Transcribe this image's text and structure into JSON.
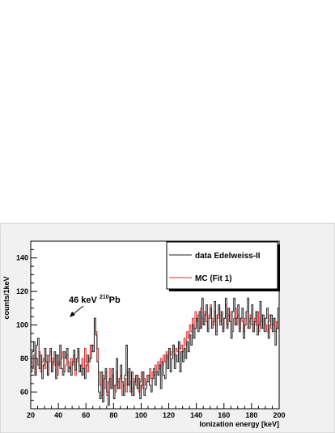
{
  "chart_data": {
    "type": "line",
    "step": true,
    "title": "",
    "xlabel": "Ionization energy [keV]",
    "ylabel": "counts/1keV",
    "xlim": [
      20,
      200
    ],
    "ylim": [
      50,
      150
    ],
    "x_ticks": [
      20,
      40,
      60,
      80,
      100,
      120,
      140,
      160,
      180,
      200
    ],
    "y_ticks": [
      60,
      80,
      100,
      120,
      140
    ],
    "legend": {
      "placement": "top-right",
      "entries": [
        {
          "label": "data Edelweiss-II",
          "color": "#222222"
        },
        {
          "label": "MC (Fit 1)",
          "color": "#e8282b"
        }
      ]
    },
    "annotation": {
      "prefix": "46 keV ",
      "sup": "210",
      "suffix": "Pb",
      "x": 46,
      "y": 104
    },
    "x_start": 20,
    "bin_width": 1,
    "series": [
      {
        "name": "data Edelweiss-II",
        "color": "#222222",
        "values": [
          72,
          84,
          90,
          70,
          88,
          92,
          74,
          82,
          68,
          76,
          86,
          78,
          70,
          82,
          86,
          72,
          78,
          84,
          68,
          82,
          76,
          88,
          74,
          70,
          84,
          80,
          86,
          72,
          75,
          70,
          78,
          85,
          73,
          80,
          86,
          72,
          76,
          70,
          74,
          68,
          76,
          82,
          78,
          80,
          88,
          84,
          104,
          94,
          78,
          60,
          56,
          72,
          54,
          68,
          74,
          60,
          52,
          68,
          62,
          74,
          56,
          64,
          80,
          62,
          68,
          76,
          66,
          58,
          70,
          88,
          64,
          74,
          60,
          72,
          58,
          66,
          70,
          62,
          68,
          56,
          64,
          72,
          58,
          62,
          66,
          70,
          64,
          60,
          68,
          74,
          64,
          72,
          70,
          76,
          62,
          78,
          70,
          68,
          82,
          74,
          86,
          72,
          80,
          88,
          74,
          82,
          78,
          90,
          72,
          84,
          78,
          86,
          80,
          90,
          84,
          94,
          88,
          100,
          92,
          98,
          104,
          96,
          108,
          98,
          116,
          100,
          106,
          112,
          96,
          104,
          110,
          98,
          102,
          114,
          94,
          106,
          112,
          100,
          108,
          96,
          104,
          116,
          98,
          110,
          102,
          92,
          108,
          116,
          100,
          104,
          112,
          96,
          104,
          110,
          92,
          100,
          108,
          116,
          98,
          104,
          112,
          96,
          102,
          108,
          94,
          100,
          114,
          98,
          106,
          96,
          104,
          110,
          92,
          100,
          106,
          96,
          104,
          88,
          98,
          110,
          94,
          102,
          92,
          100,
          86,
          98,
          104,
          90,
          96,
          88,
          100,
          92
        ]
      },
      {
        "name": "MC (Fit 1)",
        "color": "#e8282b",
        "values": [
          78,
          74,
          82,
          70,
          80,
          76,
          84,
          72,
          78,
          80,
          74,
          82,
          70,
          78,
          84,
          72,
          80,
          76,
          82,
          70,
          78,
          74,
          80,
          84,
          72,
          76,
          82,
          78,
          74,
          80,
          76,
          82,
          70,
          78,
          84,
          76,
          72,
          80,
          74,
          86,
          78,
          72,
          80,
          88,
          84,
          88,
          104,
          96,
          86,
          72,
          64,
          58,
          70,
          62,
          72,
          58,
          66,
          74,
          62,
          70,
          64,
          60,
          72,
          66,
          62,
          70,
          58,
          64,
          68,
          60,
          72,
          64,
          66,
          58,
          62,
          68,
          64,
          70,
          60,
          66,
          72,
          62,
          68,
          64,
          70,
          66,
          74,
          68,
          72,
          70,
          76,
          72,
          78,
          74,
          80,
          76,
          82,
          78,
          84,
          80,
          86,
          82,
          84,
          88,
          82,
          86,
          84,
          90,
          86,
          88,
          84,
          92,
          88,
          96,
          92,
          100,
          96,
          104,
          98,
          108,
          102,
          106,
          98,
          110,
          104,
          100,
          108,
          102,
          98,
          106,
          112,
          104,
          100,
          108,
          96,
          104,
          110,
          102,
          106,
          98,
          104,
          112,
          100,
          106,
          102,
          108,
          96,
          104,
          110,
          100,
          106,
          98,
          104,
          102,
          96,
          104,
          108,
          98,
          102,
          106,
          100,
          96,
          104,
          100,
          108,
          96,
          102,
          106,
          98,
          104,
          100,
          96,
          102,
          106,
          98,
          100,
          104,
          96,
          102,
          98,
          94,
          100,
          104,
          96,
          98,
          92,
          100,
          96,
          94,
          98,
          92,
          100
        ]
      }
    ]
  }
}
